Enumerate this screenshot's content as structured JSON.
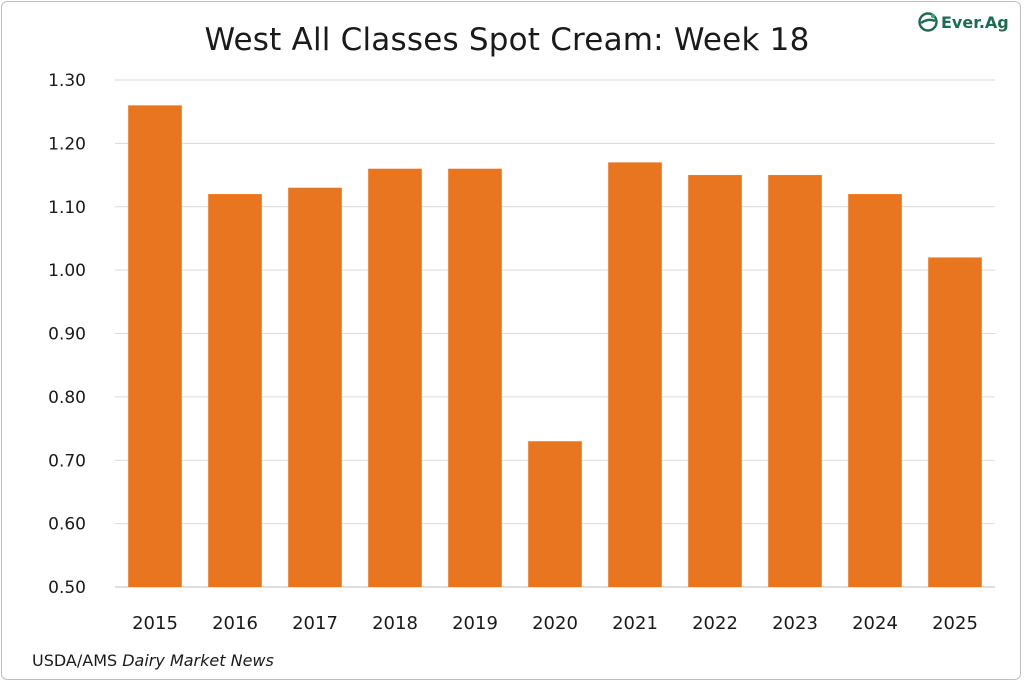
{
  "title": "West All Classes Spot Cream: Week 18",
  "logo": {
    "text": "Ever.Ag",
    "icon": "everag-leaf-icon",
    "color": "#1f6b4f"
  },
  "source": {
    "prefix": "USDA/AMS ",
    "italic": "Dairy Market News"
  },
  "colors": {
    "bar": "#e8751f",
    "grid": "#d9d9d9",
    "axis": "#bfbfbf"
  },
  "chart_data": {
    "type": "bar",
    "title": "West All Classes Spot Cream: Week 18",
    "xlabel": "",
    "ylabel": "",
    "categories": [
      "2015",
      "2016",
      "2017",
      "2018",
      "2019",
      "2020",
      "2021",
      "2022",
      "2023",
      "2024",
      "2025"
    ],
    "values": [
      1.26,
      1.12,
      1.13,
      1.16,
      1.16,
      0.73,
      1.17,
      1.15,
      1.15,
      1.12,
      1.02
    ],
    "ylim": [
      0.5,
      1.3
    ],
    "yticks": [
      "0.50",
      "0.60",
      "0.70",
      "0.80",
      "0.90",
      "1.00",
      "1.10",
      "1.20",
      "1.30"
    ],
    "grid": true,
    "legend": "none"
  }
}
